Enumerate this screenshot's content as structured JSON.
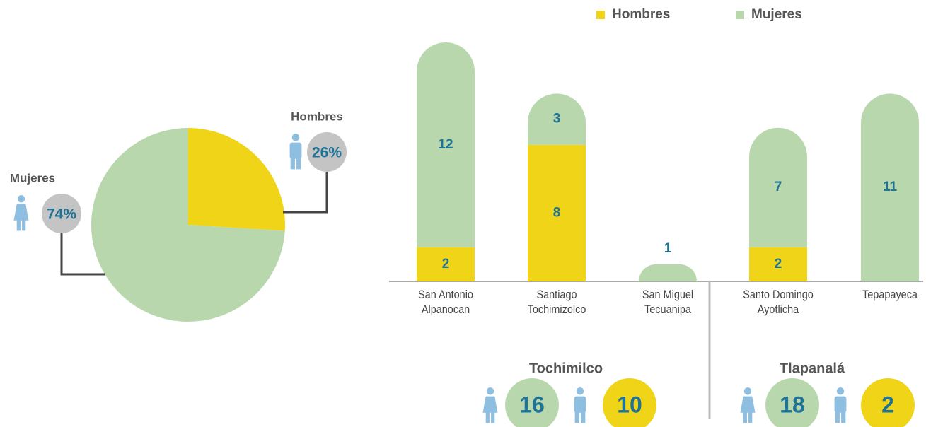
{
  "chart_data": [
    {
      "type": "pie",
      "categories": [
        "Hombres",
        "Mujeres"
      ],
      "values": [
        26,
        74
      ],
      "value_labels": [
        "26%",
        "74%"
      ],
      "colors": [
        "#f0d418",
        "#b9d7ad"
      ]
    },
    {
      "type": "stacked_bar",
      "categories": [
        "San Antonio\nAlpanocan",
        "Santiago\nTochimizolco",
        "San Miguel\nTecuanipa",
        "Santo Domingo\nAyotlicha",
        "Tepapayeca"
      ],
      "series": [
        {
          "name": "Hombres",
          "color": "#f0d418",
          "values": [
            2,
            8,
            0,
            2,
            0
          ]
        },
        {
          "name": "Mujeres",
          "color": "#b9d7ad",
          "values": [
            12,
            3,
            1,
            7,
            11
          ]
        }
      ],
      "ylim": [
        0,
        14
      ]
    }
  ],
  "summaries": [
    {
      "name": "Tochimilco",
      "mujeres": 16,
      "hombres": 10
    },
    {
      "name": "Tlapanalá",
      "mujeres": 18,
      "hombres": 2
    }
  ]
}
